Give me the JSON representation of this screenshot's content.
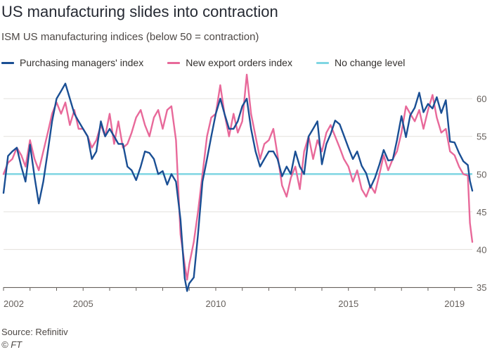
{
  "header": {
    "title": "US manufacturing slides into contraction",
    "subtitle": "ISM US manufacturing indices (below 50 = contraction)"
  },
  "footer": {
    "source": "Source: Refinitiv",
    "credit": "© FT"
  },
  "colors": {
    "pmi": "#1a4f94",
    "exports": "#e8699a",
    "nochange": "#7fd6e3",
    "grid": "#e3e0dc",
    "axis_text": "#66605c"
  },
  "chart_data": {
    "type": "line",
    "title": "US manufacturing slides into contraction",
    "subtitle": "ISM US manufacturing indices (below 50 = contraction)",
    "xlabel": "",
    "ylabel": "",
    "xlim": [
      2002,
      2019.67
    ],
    "ylim": [
      35,
      63
    ],
    "yticks": [
      35,
      40,
      45,
      50,
      55,
      60
    ],
    "xticks": [
      {
        "value": 2002,
        "label": "2002"
      },
      {
        "value": 2005,
        "label": "2005"
      },
      {
        "value": 2010,
        "label": "2010"
      },
      {
        "value": 2015,
        "label": "2015"
      },
      {
        "value": 2019,
        "label": "2019"
      }
    ],
    "grid": true,
    "y_axis_side": "right",
    "legend_position": "top-left",
    "reference_line": {
      "name": "No change level",
      "value": 50
    },
    "series": [
      {
        "name": "Purchasing managers' index",
        "points": [
          [
            2002.0,
            47.5
          ],
          [
            2002.17,
            52.4
          ],
          [
            2002.33,
            53.0
          ],
          [
            2002.5,
            53.5
          ],
          [
            2002.67,
            51.0
          ],
          [
            2002.83,
            49.0
          ],
          [
            2003.0,
            53.9
          ],
          [
            2003.17,
            49.6
          ],
          [
            2003.33,
            46.1
          ],
          [
            2003.5,
            49.0
          ],
          [
            2003.67,
            53.0
          ],
          [
            2003.83,
            57.0
          ],
          [
            2004.0,
            60.0
          ],
          [
            2004.17,
            61.0
          ],
          [
            2004.33,
            62.0
          ],
          [
            2004.5,
            60.0
          ],
          [
            2004.67,
            58.0
          ],
          [
            2004.83,
            57.0
          ],
          [
            2005.0,
            56.0
          ],
          [
            2005.17,
            55.0
          ],
          [
            2005.33,
            52.0
          ],
          [
            2005.5,
            53.0
          ],
          [
            2005.67,
            57.0
          ],
          [
            2005.83,
            55.0
          ],
          [
            2006.0,
            56.0
          ],
          [
            2006.17,
            55.0
          ],
          [
            2006.33,
            54.0
          ],
          [
            2006.5,
            54.0
          ],
          [
            2006.67,
            51.0
          ],
          [
            2006.83,
            50.5
          ],
          [
            2007.0,
            49.2
          ],
          [
            2007.17,
            51.0
          ],
          [
            2007.33,
            53.0
          ],
          [
            2007.5,
            52.8
          ],
          [
            2007.67,
            52.0
          ],
          [
            2007.83,
            50.0
          ],
          [
            2008.0,
            50.4
          ],
          [
            2008.17,
            48.6
          ],
          [
            2008.33,
            50.0
          ],
          [
            2008.5,
            49.0
          ],
          [
            2008.67,
            44.0
          ],
          [
            2008.83,
            36.2
          ],
          [
            2008.92,
            34.5
          ],
          [
            2009.0,
            35.5
          ],
          [
            2009.17,
            36.3
          ],
          [
            2009.33,
            42.0
          ],
          [
            2009.5,
            49.0
          ],
          [
            2009.67,
            52.0
          ],
          [
            2009.83,
            55.0
          ],
          [
            2010.0,
            58.0
          ],
          [
            2010.17,
            60.0
          ],
          [
            2010.33,
            58.0
          ],
          [
            2010.5,
            56.0
          ],
          [
            2010.67,
            56.0
          ],
          [
            2010.83,
            57.0
          ],
          [
            2011.0,
            59.0
          ],
          [
            2011.17,
            60.0
          ],
          [
            2011.33,
            56.0
          ],
          [
            2011.5,
            53.0
          ],
          [
            2011.67,
            51.0
          ],
          [
            2011.83,
            52.0
          ],
          [
            2012.0,
            53.0
          ],
          [
            2012.17,
            53.0
          ],
          [
            2012.33,
            52.0
          ],
          [
            2012.5,
            49.7
          ],
          [
            2012.67,
            51.0
          ],
          [
            2012.83,
            50.0
          ],
          [
            2013.0,
            53.0
          ],
          [
            2013.17,
            51.0
          ],
          [
            2013.33,
            50.0
          ],
          [
            2013.5,
            55.0
          ],
          [
            2013.67,
            56.0
          ],
          [
            2013.83,
            57.0
          ],
          [
            2014.0,
            51.3
          ],
          [
            2014.17,
            54.0
          ],
          [
            2014.33,
            55.3
          ],
          [
            2014.5,
            57.1
          ],
          [
            2014.67,
            56.6
          ],
          [
            2014.83,
            55.1
          ],
          [
            2015.0,
            53.5
          ],
          [
            2015.17,
            52.0
          ],
          [
            2015.33,
            53.0
          ],
          [
            2015.5,
            51.1
          ],
          [
            2015.67,
            50.1
          ],
          [
            2015.83,
            48.2
          ],
          [
            2016.0,
            49.5
          ],
          [
            2016.17,
            51.3
          ],
          [
            2016.33,
            53.2
          ],
          [
            2016.5,
            51.8
          ],
          [
            2016.67,
            51.9
          ],
          [
            2016.83,
            54.5
          ],
          [
            2017.0,
            57.7
          ],
          [
            2017.17,
            54.9
          ],
          [
            2017.33,
            57.8
          ],
          [
            2017.5,
            58.8
          ],
          [
            2017.67,
            60.8
          ],
          [
            2017.83,
            58.2
          ],
          [
            2018.0,
            59.3
          ],
          [
            2018.17,
            58.7
          ],
          [
            2018.33,
            60.2
          ],
          [
            2018.5,
            58.1
          ],
          [
            2018.67,
            59.8
          ],
          [
            2018.83,
            54.3
          ],
          [
            2019.0,
            54.2
          ],
          [
            2019.17,
            52.8
          ],
          [
            2019.33,
            51.7
          ],
          [
            2019.5,
            51.2
          ],
          [
            2019.58,
            49.1
          ],
          [
            2019.67,
            47.8
          ]
        ]
      },
      {
        "name": "New export orders index",
        "points": [
          [
            2002.0,
            50.0
          ],
          [
            2002.17,
            51.5
          ],
          [
            2002.33,
            52.0
          ],
          [
            2002.5,
            53.5
          ],
          [
            2002.67,
            52.5
          ],
          [
            2002.83,
            51.0
          ],
          [
            2003.0,
            54.5
          ],
          [
            2003.17,
            52.0
          ],
          [
            2003.33,
            50.5
          ],
          [
            2003.5,
            53.0
          ],
          [
            2003.67,
            55.5
          ],
          [
            2003.83,
            58.0
          ],
          [
            2004.0,
            59.5
          ],
          [
            2004.17,
            58.0
          ],
          [
            2004.33,
            59.5
          ],
          [
            2004.5,
            56.5
          ],
          [
            2004.67,
            58.5
          ],
          [
            2004.83,
            56.0
          ],
          [
            2005.0,
            56.0
          ],
          [
            2005.17,
            55.0
          ],
          [
            2005.33,
            53.5
          ],
          [
            2005.5,
            54.5
          ],
          [
            2005.67,
            56.5
          ],
          [
            2005.83,
            55.0
          ],
          [
            2006.0,
            58.0
          ],
          [
            2006.17,
            54.0
          ],
          [
            2006.33,
            57.0
          ],
          [
            2006.5,
            53.5
          ],
          [
            2006.67,
            54.0
          ],
          [
            2006.83,
            55.5
          ],
          [
            2007.0,
            57.5
          ],
          [
            2007.17,
            58.5
          ],
          [
            2007.33,
            56.5
          ],
          [
            2007.5,
            55.0
          ],
          [
            2007.67,
            57.5
          ],
          [
            2007.83,
            58.5
          ],
          [
            2008.0,
            56.0
          ],
          [
            2008.17,
            58.5
          ],
          [
            2008.33,
            59.0
          ],
          [
            2008.5,
            54.5
          ],
          [
            2008.67,
            42.0
          ],
          [
            2008.83,
            38.0
          ],
          [
            2008.92,
            36.0
          ],
          [
            2009.0,
            38.0
          ],
          [
            2009.17,
            41.0
          ],
          [
            2009.33,
            45.0
          ],
          [
            2009.5,
            50.0
          ],
          [
            2009.67,
            55.0
          ],
          [
            2009.83,
            57.5
          ],
          [
            2010.0,
            58.0
          ],
          [
            2010.17,
            61.8
          ],
          [
            2010.33,
            58.0
          ],
          [
            2010.5,
            55.0
          ],
          [
            2010.67,
            58.0
          ],
          [
            2010.83,
            55.5
          ],
          [
            2011.0,
            57.0
          ],
          [
            2011.17,
            63.2
          ],
          [
            2011.33,
            58.0
          ],
          [
            2011.5,
            55.0
          ],
          [
            2011.67,
            52.0
          ],
          [
            2011.83,
            54.0
          ],
          [
            2012.0,
            54.5
          ],
          [
            2012.17,
            56.0
          ],
          [
            2012.33,
            52.5
          ],
          [
            2012.5,
            48.5
          ],
          [
            2012.67,
            47.0
          ],
          [
            2012.83,
            49.5
          ],
          [
            2013.0,
            51.0
          ],
          [
            2013.17,
            48.0
          ],
          [
            2013.33,
            53.0
          ],
          [
            2013.5,
            55.0
          ],
          [
            2013.67,
            52.0
          ],
          [
            2013.83,
            54.5
          ],
          [
            2014.0,
            53.0
          ],
          [
            2014.17,
            55.5
          ],
          [
            2014.33,
            56.5
          ],
          [
            2014.5,
            55.0
          ],
          [
            2014.67,
            53.5
          ],
          [
            2014.83,
            52.0
          ],
          [
            2015.0,
            51.0
          ],
          [
            2015.17,
            49.0
          ],
          [
            2015.33,
            50.5
          ],
          [
            2015.5,
            48.0
          ],
          [
            2015.67,
            47.0
          ],
          [
            2015.83,
            48.5
          ],
          [
            2016.0,
            47.5
          ],
          [
            2016.17,
            50.0
          ],
          [
            2016.33,
            52.5
          ],
          [
            2016.5,
            50.5
          ],
          [
            2016.67,
            52.0
          ],
          [
            2016.83,
            53.0
          ],
          [
            2017.0,
            55.5
          ],
          [
            2017.17,
            59.0
          ],
          [
            2017.33,
            58.0
          ],
          [
            2017.5,
            57.0
          ],
          [
            2017.67,
            58.5
          ],
          [
            2017.83,
            56.0
          ],
          [
            2018.0,
            58.5
          ],
          [
            2018.17,
            60.5
          ],
          [
            2018.33,
            57.5
          ],
          [
            2018.5,
            55.5
          ],
          [
            2018.67,
            56.0
          ],
          [
            2018.83,
            53.0
          ],
          [
            2019.0,
            52.5
          ],
          [
            2019.17,
            51.0
          ],
          [
            2019.33,
            50.0
          ],
          [
            2019.5,
            49.8
          ],
          [
            2019.58,
            43.5
          ],
          [
            2019.67,
            41.0
          ]
        ]
      }
    ]
  }
}
